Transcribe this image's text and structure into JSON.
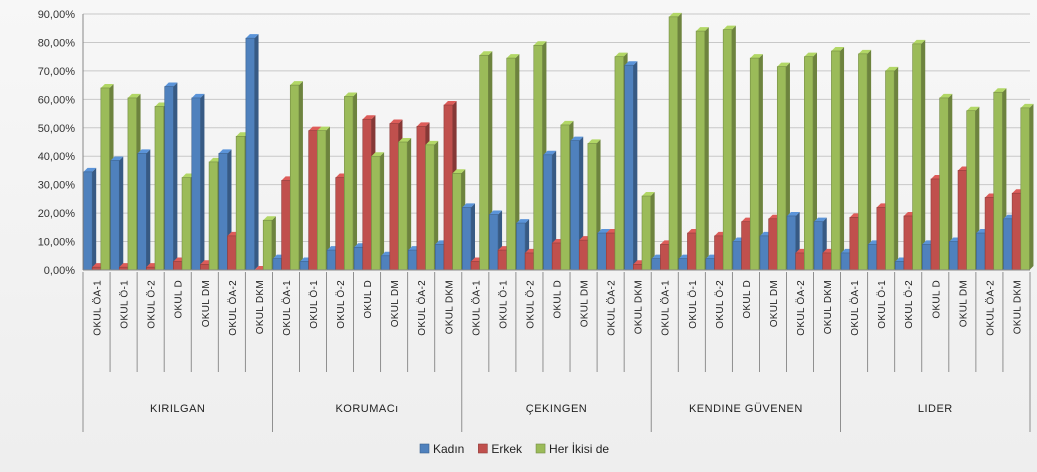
{
  "chart_data": {
    "type": "bar",
    "title": "",
    "xlabel": "",
    "ylabel": "",
    "ylim": [
      0,
      90
    ],
    "y_ticks": [
      "0,00%",
      "10,00%",
      "20,00%",
      "30,00%",
      "40,00%",
      "50,00%",
      "60,00%",
      "70,00%",
      "80,00%",
      "90,00%"
    ],
    "grid": true,
    "legend_position": "bottom",
    "groups": [
      {
        "label": "KIRILGAN",
        "categories": [
          "OKUL ÖA-1",
          "OKUL Ö-1",
          "OKUL Ö-2",
          "OKUL D",
          "OKUL DM",
          "OKUL ÖA-2",
          "OKUL DKM"
        ]
      },
      {
        "label": "KORUMACı",
        "categories": [
          "OKUL ÖA-1",
          "OKUL Ö-1",
          "OKUL Ö-2",
          "OKUL D",
          "OKUL DM",
          "OKUL ÖA-2",
          "OKUL DKM"
        ]
      },
      {
        "label": "ÇEKINGEN",
        "categories": [
          "OKUL ÖA-1",
          "OKUL Ö-1",
          "OKUL Ö-2",
          "OKUL D",
          "OKUL DM",
          "OKUL ÖA-2",
          "OKUL DKM"
        ]
      },
      {
        "label": "KENDINE GÜVENEN",
        "categories": [
          "OKUL ÖA-1",
          "OKUL Ö-1",
          "OKUL Ö-2",
          "OKUL D",
          "OKUL DM",
          "OKUL ÖA-2",
          "OKUL DKM"
        ]
      },
      {
        "label": "LIDER",
        "categories": [
          "OKUL ÖA-1",
          "OKUL Ö-1",
          "OKUL Ö-2",
          "OKUL D",
          "OKUL DM",
          "OKUL ÖA-2",
          "OKUL DKM"
        ]
      }
    ],
    "series": [
      {
        "name": "Kadın",
        "color": "#4f81bd",
        "values": [
          34.5,
          38.5,
          41,
          64.5,
          60.5,
          41,
          81.5,
          4,
          3,
          7,
          8,
          5,
          7,
          9,
          22,
          19.5,
          16.5,
          40.5,
          45.5,
          13,
          72,
          4,
          4,
          4,
          10,
          12,
          19,
          17,
          6,
          9,
          3,
          9,
          10,
          13,
          18
        ]
      },
      {
        "name": "Erkek",
        "color": "#c0504d",
        "values": [
          1,
          1,
          1,
          3,
          2,
          12,
          0,
          31.5,
          49,
          32.5,
          53,
          51.5,
          50.5,
          58,
          3,
          7,
          6,
          9.5,
          10.5,
          13,
          2,
          9,
          13,
          12,
          17,
          18,
          6,
          6,
          18.5,
          22,
          19,
          32,
          35,
          25.5,
          27
        ]
      },
      {
        "name": "Her İkisi de",
        "color": "#9bbb59",
        "values": [
          64,
          60.5,
          57.5,
          32.5,
          38,
          47,
          17.5,
          65,
          49,
          61,
          40,
          45,
          44,
          34,
          75.5,
          74.5,
          79,
          51,
          44.5,
          75,
          26,
          89,
          84,
          84.5,
          74.5,
          71.5,
          75,
          77,
          76,
          70,
          79.5,
          60.5,
          56,
          62.5,
          57
        ]
      }
    ]
  }
}
